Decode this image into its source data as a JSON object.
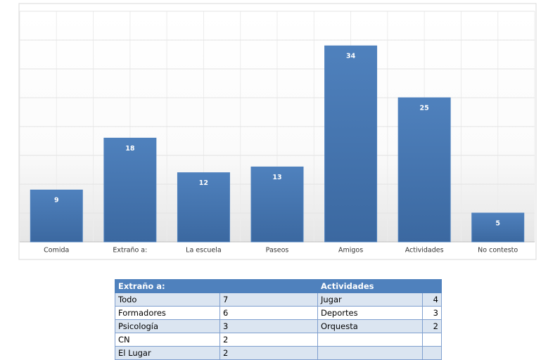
{
  "chart_data": {
    "type": "bar",
    "categories": [
      "Comida",
      "Extraño a:",
      "La escuela",
      "Paseos",
      "Amigos",
      "Actividades",
      "No contesto"
    ],
    "values": [
      9,
      18,
      12,
      13,
      34,
      25,
      5
    ],
    "color": "#4f81bd",
    "ylim": [
      0,
      40
    ],
    "yticks": [
      0,
      5,
      10,
      15,
      20,
      25,
      30,
      35,
      40
    ],
    "grid": true
  },
  "table": {
    "headers": [
      "Extraño a:",
      "Actividades"
    ],
    "rows": [
      [
        "Todo",
        7,
        "Jugar",
        4
      ],
      [
        "Formadores",
        6,
        "Deportes",
        3
      ],
      [
        "Psicología",
        3,
        "Orquesta",
        2
      ],
      [
        "CN",
        2
      ],
      [
        "El Lugar",
        2
      ]
    ]
  }
}
